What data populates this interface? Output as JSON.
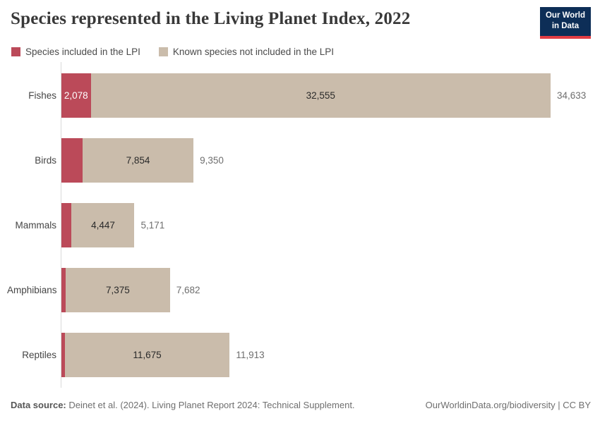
{
  "header": {
    "title": "Species represented in the Living Planet Index, 2022",
    "logo": {
      "line1": "Our World",
      "line2": "in Data",
      "bg_color": "#0d2e57",
      "accent_color": "#e23d44"
    }
  },
  "chart_data": {
    "type": "bar",
    "orientation": "horizontal",
    "stacked": true,
    "title": "Species represented in the Living Planet Index, 2022",
    "categories": [
      "Fishes",
      "Birds",
      "Mammals",
      "Amphibians",
      "Reptiles"
    ],
    "series": [
      {
        "name": "Species included in the LPI",
        "color": "#bb4a59",
        "values": [
          2078,
          1496,
          724,
          307,
          238
        ]
      },
      {
        "name": "Known species not included in the LPI",
        "color": "#cabcab",
        "values": [
          32555,
          7854,
          4447,
          7375,
          11675
        ]
      }
    ],
    "totals": [
      34633,
      9350,
      5171,
      7682,
      11913
    ],
    "labels": {
      "included": [
        "2,078",
        "",
        "",
        "",
        ""
      ],
      "not_included": [
        "32,555",
        "7,854",
        "4,447",
        "7,375",
        "11,675"
      ],
      "totals": [
        "34,633",
        "9,350",
        "5,171",
        "7,682",
        "11,913"
      ]
    },
    "xlim": [
      0,
      34633
    ],
    "legend_position": "top",
    "grid": false,
    "axis_line_color": "#dadada"
  },
  "footer": {
    "source_label": "Data source:",
    "source_text": " Deinet et al. (2024). Living Planet Report 2024: Technical Supplement.",
    "credit": "OurWorldinData.org/biodiversity | CC BY"
  }
}
